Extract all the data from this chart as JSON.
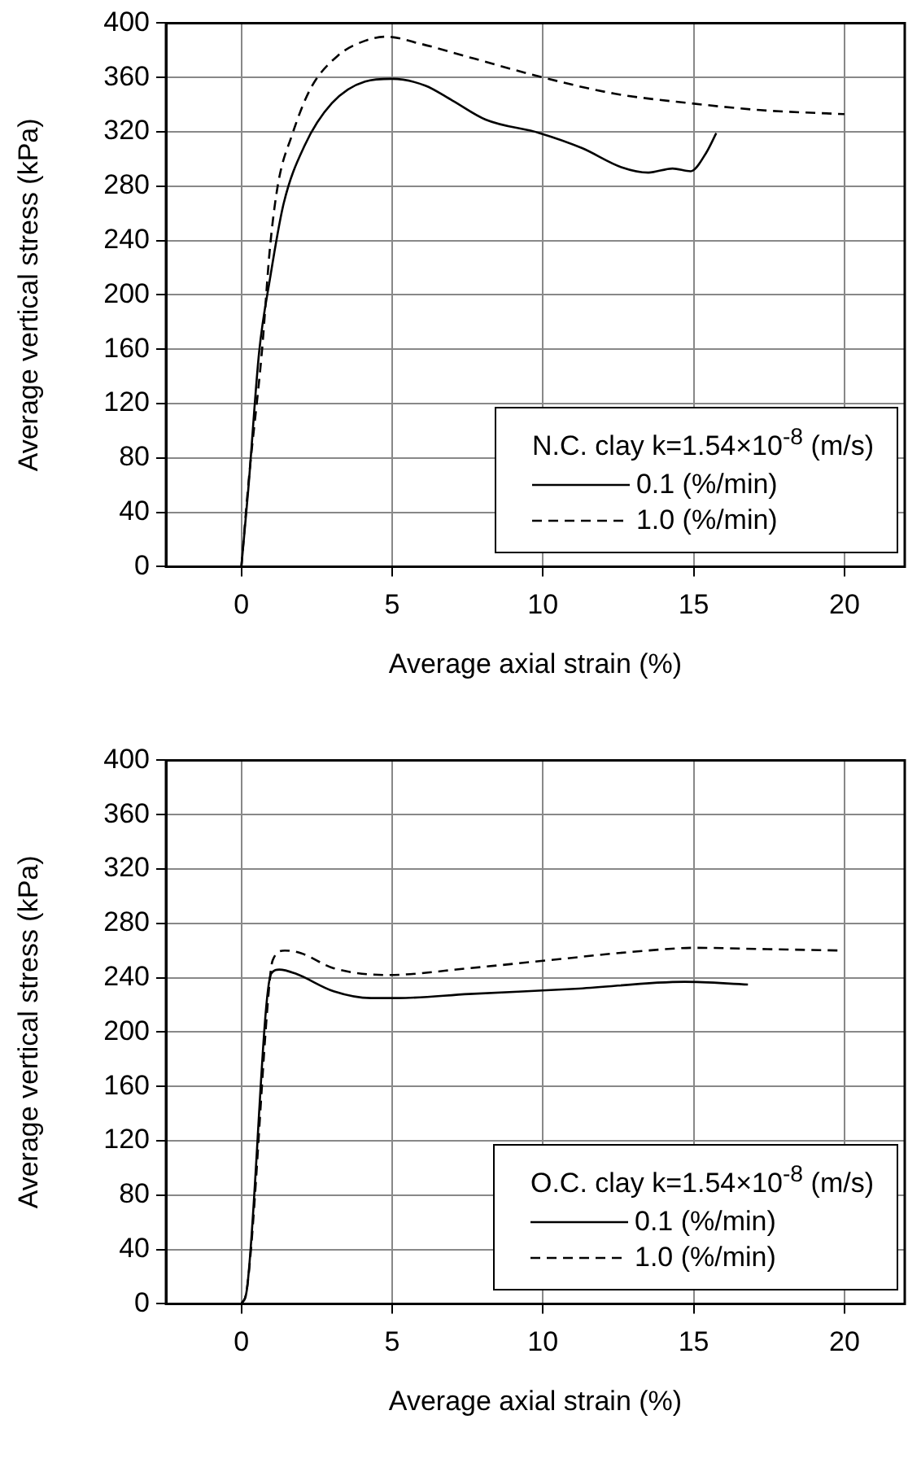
{
  "chart_data": [
    {
      "type": "line",
      "xlabel": "Average axial strain (%)",
      "ylabel": "Average vertical stress (kPa)",
      "legend_title": "N.C. clay  k=1.54×10$^{-8}$ (m/s)",
      "legend": "bottom right",
      "grid": true,
      "marker": "none",
      "xlim": [
        -2.5,
        22
      ],
      "xticks": [
        0,
        5,
        10,
        15,
        20
      ],
      "ylim": [
        0,
        400
      ],
      "yticks": [
        0,
        40,
        80,
        120,
        160,
        200,
        240,
        280,
        320,
        360,
        400
      ],
      "series": [
        {
          "name": "0.1 (%/min)",
          "color": "#000000",
          "line_style": "solid",
          "x": [
            0,
            0.23,
            0.59,
            0.95,
            1.4,
            2.1,
            3.0,
            4.1,
            5.0,
            6.1,
            7.0,
            8.1,
            9.9,
            11.3,
            12.6,
            13.5,
            14.3,
            14.9,
            15.4,
            15.75
          ],
          "values": [
            0,
            57,
            158,
            212,
            267,
            310,
            341,
            357,
            359,
            354,
            343,
            329,
            319,
            308,
            294,
            290,
            293,
            291,
            304,
            319
          ]
        },
        {
          "name": "1.0 (%/min)",
          "color": "#000000",
          "line_style": "dashed",
          "x": [
            0,
            0.25,
            0.68,
            0.95,
            1.22,
            1.67,
            2.3,
            3.2,
            4.1,
            4.8,
            5.9,
            7.7,
            10,
            12.4,
            14.9,
            17.2,
            20
          ],
          "values": [
            0,
            65,
            158,
            235,
            282,
            317,
            352,
            376,
            387,
            390,
            385,
            374,
            360,
            348,
            341,
            336,
            333
          ]
        }
      ]
    },
    {
      "type": "line",
      "xlabel": "Average axial strain (%)",
      "ylabel": "Average vertical stress (kPa)",
      "legend_title": "O.C. clay  k=1.54×10$^{-8}$ (m/s)",
      "legend": "bottom right",
      "grid": true,
      "marker": "none",
      "xlim": [
        -2.5,
        22
      ],
      "xticks": [
        0,
        5,
        10,
        15,
        20
      ],
      "ylim": [
        0,
        400
      ],
      "yticks": [
        0,
        40,
        80,
        120,
        160,
        200,
        240,
        280,
        320,
        360,
        400
      ],
      "series": [
        {
          "name": "0.1 (%/min)",
          "color": "#000000",
          "line_style": "solid",
          "x": [
            0,
            0.18,
            0.99,
            1.26,
            1.8,
            3.06,
            4.3,
            5.2,
            7.55,
            11.2,
            14.7,
            16.8
          ],
          "values": [
            0,
            10,
            243,
            246,
            243,
            230,
            225,
            225,
            228,
            232,
            237,
            235
          ]
        },
        {
          "name": "1.0 (%/min)",
          "color": "#000000",
          "line_style": "dashed",
          "x": [
            0,
            0.18,
            0.95,
            1.04,
            1.44,
            1.98,
            3.06,
            4.86,
            7.55,
            10.25,
            12.95,
            15.1,
            17.45,
            19.9
          ],
          "values": [
            0,
            10,
            240,
            253,
            260,
            258,
            247,
            242,
            247,
            253,
            259,
            262,
            261,
            260
          ]
        }
      ]
    }
  ]
}
